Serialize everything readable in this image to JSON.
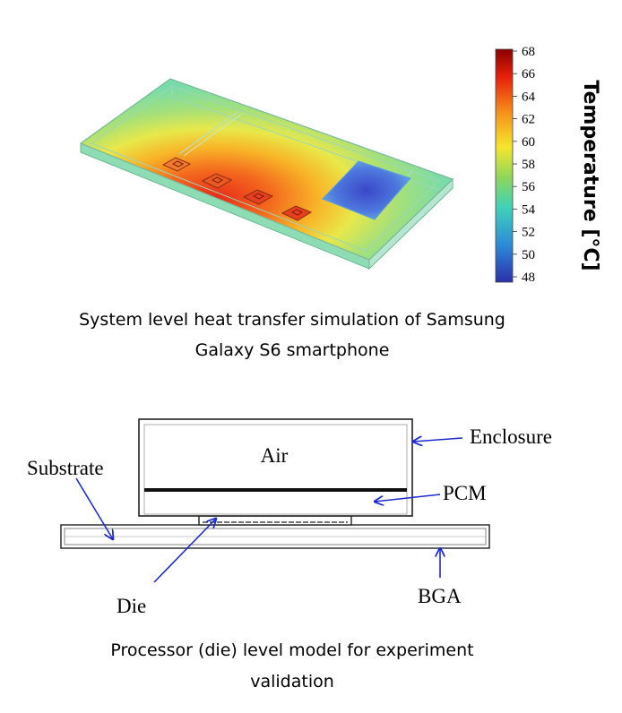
{
  "top_panel": {
    "caption_line1": "System level heat transfer simulation of Samsung",
    "caption_line2": "Galaxy S6 smartphone",
    "colorbar": {
      "title": "Temperature [°C]",
      "ticks": [
        "68",
        "66",
        "64",
        "62",
        "60",
        "58",
        "56",
        "54",
        "52",
        "50",
        "48"
      ],
      "min": 48,
      "max": 68,
      "colors": [
        "#8b0000",
        "#e8200c",
        "#f7961b",
        "#f5e62b",
        "#8fd65a",
        "#3fd2b9",
        "#2d8ad8",
        "#2b2fa8"
      ]
    }
  },
  "bottom_panel": {
    "caption_line1": "Processor (die) level model for experiment",
    "caption_line2": "validation",
    "labels": {
      "air": "Air",
      "enclosure": "Enclosure",
      "pcm": "PCM",
      "substrate": "Substrate",
      "die": "Die",
      "bga": "BGA"
    },
    "arrow_color": "#1e2bd0"
  }
}
